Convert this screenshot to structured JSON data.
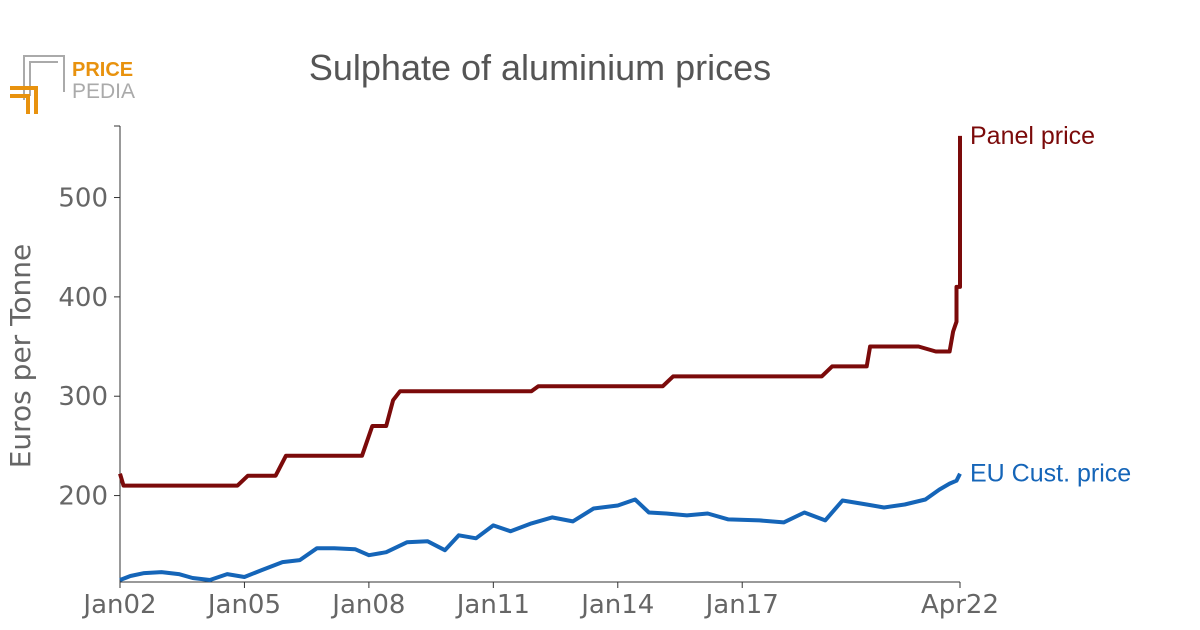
{
  "logo": {
    "line1": "PRICE",
    "line2": "PEDIA",
    "accent": "#e8920e",
    "frame": "#aaaaaa"
  },
  "chart_data": {
    "type": "line",
    "title": "Sulphate of aluminium prices",
    "ylabel": "Euros per Tonne",
    "xlabel": "",
    "x_range": [
      "2002-01",
      "2022-04"
    ],
    "ylim": [
      113,
      572
    ],
    "y_ticks": [
      200,
      300,
      400,
      500
    ],
    "x_ticks": [
      {
        "date": "2002-01",
        "label": "Jan02"
      },
      {
        "date": "2005-01",
        "label": "Jan05"
      },
      {
        "date": "2008-01",
        "label": "Jan08"
      },
      {
        "date": "2011-01",
        "label": "Jan11"
      },
      {
        "date": "2014-01",
        "label": "Jan14"
      },
      {
        "date": "2017-01",
        "label": "Jan17"
      },
      {
        "date": "2022-04",
        "label": "Apr22"
      }
    ],
    "grid": false,
    "legend": "direct labels at line ends",
    "series": [
      {
        "name": "Panel price",
        "color": "#7b0a0a",
        "points": [
          [
            "2002-01",
            222
          ],
          [
            "2002-02",
            210
          ],
          [
            "2004-11",
            210
          ],
          [
            "2005-02",
            220
          ],
          [
            "2005-10",
            220
          ],
          [
            "2006-01",
            240
          ],
          [
            "2007-11",
            240
          ],
          [
            "2008-02",
            270
          ],
          [
            "2008-06",
            270
          ],
          [
            "2008-08",
            296
          ],
          [
            "2008-10",
            305
          ],
          [
            "2011-12",
            305
          ],
          [
            "2012-02",
            310
          ],
          [
            "2015-02",
            310
          ],
          [
            "2015-05",
            320
          ],
          [
            "2018-12",
            320
          ],
          [
            "2019-03",
            330
          ],
          [
            "2020-01",
            330
          ],
          [
            "2020-02",
            350
          ],
          [
            "2021-04",
            350
          ],
          [
            "2021-09",
            345
          ],
          [
            "2022-01",
            345
          ],
          [
            "2022-02",
            365
          ],
          [
            "2022-03",
            375
          ],
          [
            "2022-03",
            410
          ],
          [
            "2022-04",
            410
          ],
          [
            "2022-04",
            562
          ]
        ]
      },
      {
        "name": "EU Cust. price",
        "color": "#1565b8",
        "points": [
          [
            "2002-01",
            115
          ],
          [
            "2002-04",
            119
          ],
          [
            "2002-08",
            122
          ],
          [
            "2003-01",
            123
          ],
          [
            "2003-06",
            121
          ],
          [
            "2003-10",
            117
          ],
          [
            "2004-03",
            115
          ],
          [
            "2004-08",
            121
          ],
          [
            "2005-01",
            118
          ],
          [
            "2005-06",
            125
          ],
          [
            "2005-12",
            133
          ],
          [
            "2006-05",
            135
          ],
          [
            "2006-10",
            147
          ],
          [
            "2007-03",
            147
          ],
          [
            "2007-09",
            146
          ],
          [
            "2008-01",
            140
          ],
          [
            "2008-06",
            143
          ],
          [
            "2008-12",
            153
          ],
          [
            "2009-06",
            154
          ],
          [
            "2009-11",
            145
          ],
          [
            "2010-03",
            160
          ],
          [
            "2010-08",
            157
          ],
          [
            "2011-01",
            170
          ],
          [
            "2011-06",
            164
          ],
          [
            "2011-12",
            172
          ],
          [
            "2012-06",
            178
          ],
          [
            "2012-12",
            174
          ],
          [
            "2013-06",
            187
          ],
          [
            "2014-01",
            190
          ],
          [
            "2014-06",
            196
          ],
          [
            "2014-10",
            183
          ],
          [
            "2015-03",
            182
          ],
          [
            "2015-09",
            180
          ],
          [
            "2016-03",
            182
          ],
          [
            "2016-09",
            176
          ],
          [
            "2017-06",
            175
          ],
          [
            "2018-01",
            173
          ],
          [
            "2018-07",
            183
          ],
          [
            "2019-01",
            175
          ],
          [
            "2019-06",
            195
          ],
          [
            "2020-01",
            191
          ],
          [
            "2020-06",
            188
          ],
          [
            "2020-12",
            191
          ],
          [
            "2021-06",
            196
          ],
          [
            "2021-10",
            206
          ],
          [
            "2022-01",
            212
          ],
          [
            "2022-03",
            215
          ],
          [
            "2022-04",
            222
          ]
        ]
      }
    ]
  }
}
